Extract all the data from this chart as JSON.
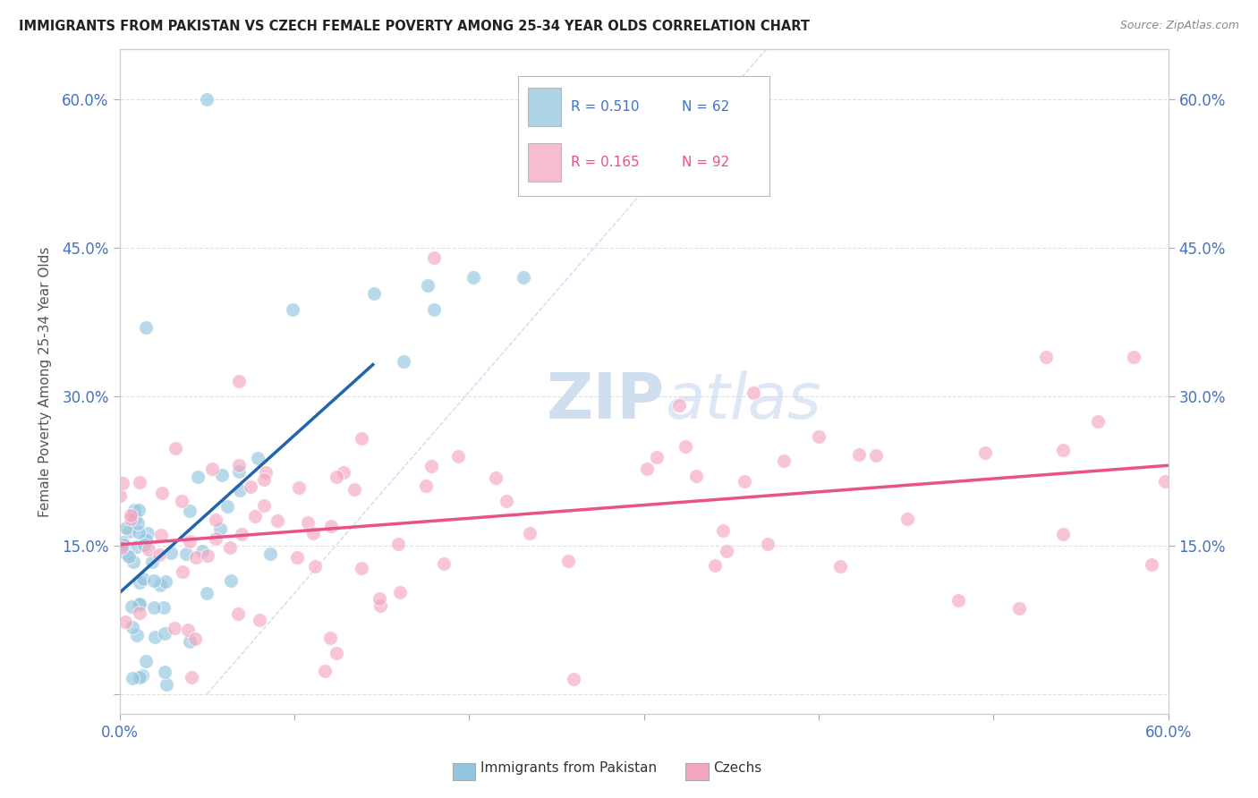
{
  "title": "IMMIGRANTS FROM PAKISTAN VS CZECH FEMALE POVERTY AMONG 25-34 YEAR OLDS CORRELATION CHART",
  "source": "Source: ZipAtlas.com",
  "ylabel": "Female Poverty Among 25-34 Year Olds",
  "xlim": [
    0.0,
    0.6
  ],
  "ylim": [
    -0.02,
    0.65
  ],
  "ytick_vals": [
    0.0,
    0.15,
    0.3,
    0.45,
    0.6
  ],
  "ytick_labels": [
    "",
    "15.0%",
    "30.0%",
    "45.0%",
    "60.0%"
  ],
  "xtick_vals": [
    0.0,
    0.1,
    0.2,
    0.3,
    0.4,
    0.5,
    0.6
  ],
  "xtick_labels": [
    "0.0%",
    "",
    "",
    "",
    "",
    "",
    "60.0%"
  ],
  "right_ytick_vals": [
    0.15,
    0.3,
    0.45,
    0.6
  ],
  "right_ytick_labels": [
    "15.0%",
    "30.0%",
    "45.0%",
    "60.0%"
  ],
  "color_pakistan": "#92c5de",
  "color_czech": "#f4a6c0",
  "color_line_pakistan": "#2166ac",
  "color_line_czech": "#e8518a",
  "color_diag": "#c6d9f0",
  "background_color": "#ffffff",
  "grid_color": "#e0e0e0",
  "tick_color": "#4472c4",
  "watermark_color": "#d0dff0",
  "watermark_text_ZIP": "ZIP",
  "watermark_text_atlas": "atlas",
  "legend_box_color": "#ffffff",
  "legend_border_color": "#cccccc"
}
